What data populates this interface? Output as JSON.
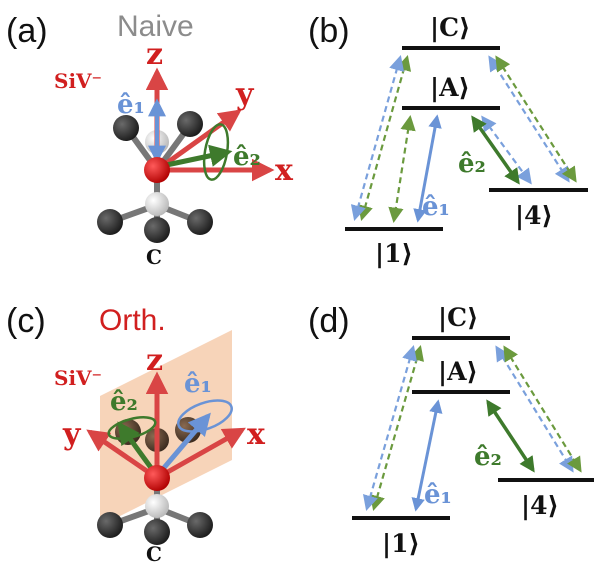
{
  "panels": {
    "a": {
      "label": "(a)",
      "title": "Naive"
    },
    "b": {
      "label": "(b)"
    },
    "c": {
      "label": "(c)",
      "title": "Orth."
    },
    "d": {
      "label": "(d)"
    }
  },
  "molecule": {
    "defect_label": "SiV⁻",
    "carbon_label": "C",
    "axes": {
      "x": "x",
      "y": "y",
      "z": "z"
    }
  },
  "polarizations": {
    "e1": "ê₁",
    "e2": "ê₂"
  },
  "levels": {
    "C": "|C⟩",
    "A": "|A⟩",
    "one": "|1⟩",
    "four": "|4⟩"
  },
  "colors": {
    "axis_red": "#d94545",
    "e1_blue": "#6a93d6",
    "e2_green": "#3e7a2c",
    "dashed_green": "#6b9a3e",
    "dashed_blue": "#7aa0dc",
    "plane_orange": "#f5c9a8",
    "atom_black": "#2b2b2b",
    "atom_grey": "#d8d8d8",
    "atom_red": "#d81414"
  }
}
